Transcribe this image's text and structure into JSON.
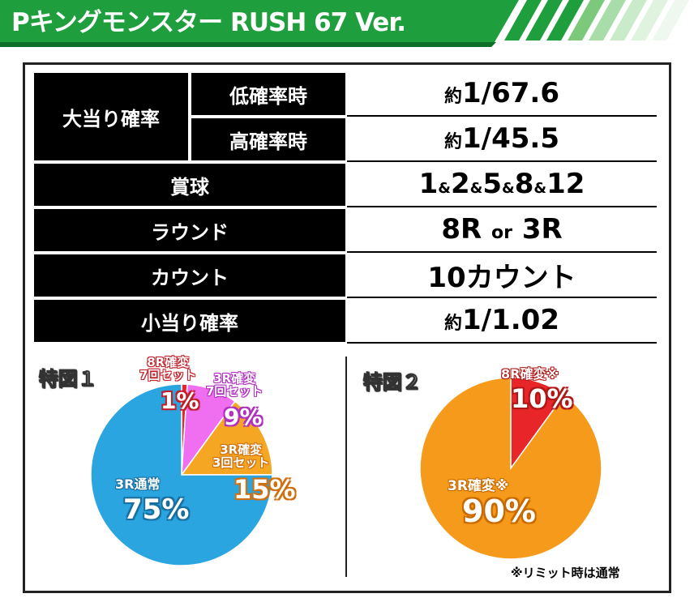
{
  "header": {
    "title": "Pキングモンスター RUSH 67 Ver."
  },
  "spec": {
    "jackpot_label": "大当り確率",
    "low_label": "低確率時",
    "low_value_prefix": "約",
    "low_value": "1/67.6",
    "high_label": "高確率時",
    "high_value_prefix": "約",
    "high_value": "1/45.5",
    "prize_label": "賞球",
    "prize_values": [
      "1",
      "2",
      "5",
      "8",
      "12"
    ],
    "prize_separator": "&",
    "round_label": "ラウンド",
    "round_a": "8R",
    "round_or": "or",
    "round_b": "3R",
    "count_label": "カウント",
    "count_value": "10カウント",
    "small_label": "小当り確率",
    "small_value_prefix": "約",
    "small_value": "1/1.02"
  },
  "chart_data": [
    {
      "type": "pie",
      "title": "特図１",
      "slices": [
        {
          "label": "8R確変\n7回セット",
          "value": 1,
          "pct": "1%",
          "color": "#e8262a"
        },
        {
          "label": "3R確変\n7回セット",
          "value": 9,
          "pct": "9%",
          "color": "#f06ef0"
        },
        {
          "label": "3R確変\n3回セット",
          "value": 15,
          "pct": "15%",
          "color": "#f5a623"
        },
        {
          "label": "3R通常",
          "value": 75,
          "pct": "75%",
          "color": "#2aa5e0"
        }
      ]
    },
    {
      "type": "pie",
      "title": "特図２",
      "slices": [
        {
          "label": "8R確変※",
          "value": 10,
          "pct": "10%",
          "color": "#e8262a"
        },
        {
          "label": "3R確変※",
          "value": 90,
          "pct": "90%",
          "color": "#f59a1a"
        }
      ],
      "note": "※リミット時は通常"
    }
  ],
  "colors": {
    "banner_green": "#1a9c3a",
    "banner_dark": "#0f7a2b"
  }
}
